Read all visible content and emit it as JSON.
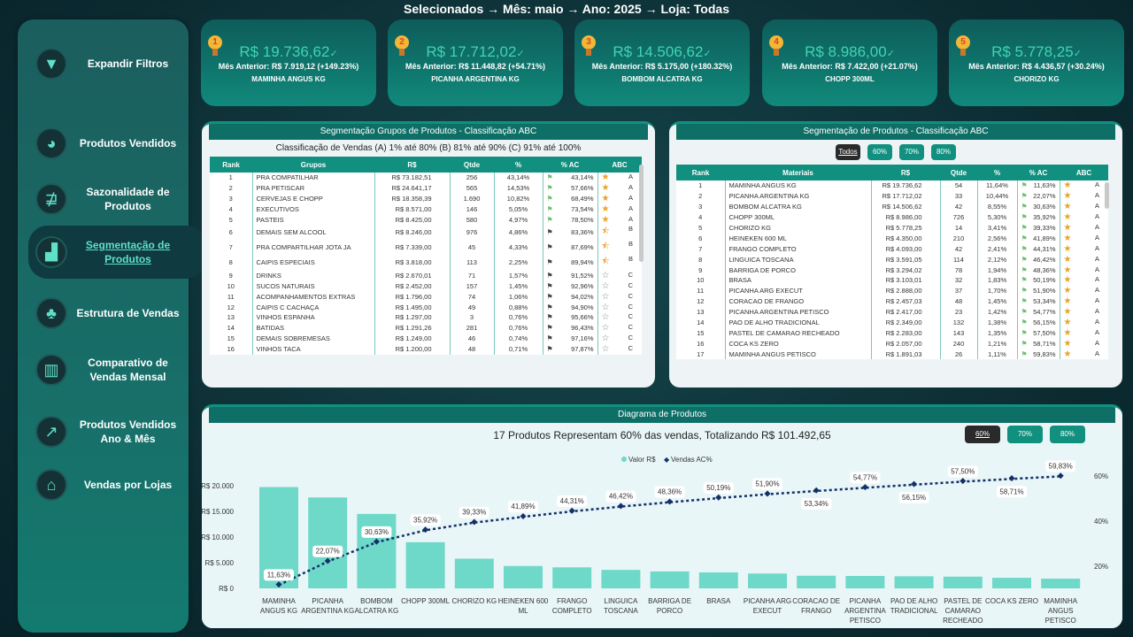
{
  "header": {
    "title": "Selecionados → Mês: maio → Ano: 2025 → Loja: Todas"
  },
  "sidebar": {
    "items": [
      {
        "label": "Expandir Filtros",
        "icon": "funnel-icon"
      },
      {
        "label": "Produtos Vendidos",
        "icon": "pie-chart-icon"
      },
      {
        "label": "Sazonalidade de Produtos",
        "icon": "seasonality-icon"
      },
      {
        "label": "Segmentação de Produtos",
        "icon": "bar-chart-growth-icon",
        "active": true
      },
      {
        "label": "Estrutura de Vendas",
        "icon": "org-chart-icon"
      },
      {
        "label": "Comparativo de Vendas Mensal",
        "icon": "compare-chart-icon"
      },
      {
        "label": "Produtos Vendidos Ano & Mês",
        "icon": "line-chart-icon"
      },
      {
        "label": "Vendas por Lojas",
        "icon": "store-icon"
      }
    ]
  },
  "cards": [
    {
      "rank": "1",
      "value": "R$ 19.736,62",
      "prev": "Mês Anterior: R$ 7.919,12 (+149.23%)",
      "name": "MAMINHA ANGUS KG"
    },
    {
      "rank": "2",
      "value": "R$ 17.712,02",
      "prev": "Mês Anterior: R$ 11.448,82 (+54.71%)",
      "name": "PICANHA ARGENTINA KG"
    },
    {
      "rank": "3",
      "value": "R$ 14.506,62",
      "prev": "Mês Anterior: R$ 5.175,00 (+180.32%)",
      "name": "BOMBOM ALCATRA KG"
    },
    {
      "rank": "4",
      "value": "R$ 8.986,00",
      "prev": "Mês Anterior: R$ 7.422,00 (+21.07%)",
      "name": "CHOPP 300ML"
    },
    {
      "rank": "5",
      "value": "R$ 5.778,25",
      "prev": "Mês Anterior: R$ 4.436,57 (+30.24%)",
      "name": "CHORIZO KG"
    }
  ],
  "groups_panel": {
    "title": "Segmentação Grupos de Produtos - Classificação ABC",
    "subtitle": "Classificação de Vendas (A) 1% até 80% (B) 81% até 90% (C) 91% até 100%",
    "columns": [
      "Rank",
      "Grupos",
      "R$",
      "Qtde",
      "%",
      "% AC",
      "ABC"
    ],
    "rows": [
      [
        "1",
        "PRA COMPATILHAR",
        "R$ 73.182,51",
        "256",
        "43,14%",
        "43,14%",
        "A"
      ],
      [
        "2",
        "PRA PETISCAR",
        "R$ 24.641,17",
        "565",
        "14,53%",
        "57,66%",
        "A"
      ],
      [
        "3",
        "CERVEJAS E CHOPP",
        "R$ 18.358,39",
        "1.690",
        "10,82%",
        "68,49%",
        "A"
      ],
      [
        "4",
        "EXECUTIVOS",
        "R$ 8.571,00",
        "146",
        "5,05%",
        "73,54%",
        "A"
      ],
      [
        "5",
        "PASTEIS",
        "R$ 8.425,00",
        "580",
        "4,97%",
        "78,50%",
        "A"
      ],
      [
        "6",
        "DEMAIS SEM ALCOOL",
        "R$ 8.246,00",
        "976",
        "4,86%",
        "83,36%",
        "B"
      ],
      [
        "7",
        "PRA COMPARTILHAR JOTA JA",
        "R$ 7.339,00",
        "45",
        "4,33%",
        "87,69%",
        "B"
      ],
      [
        "8",
        "CAIPIS ESPECIAIS",
        "R$ 3.818,00",
        "113",
        "2,25%",
        "89,94%",
        "B"
      ],
      [
        "9",
        "DRINKS",
        "R$ 2.670,01",
        "71",
        "1,57%",
        "91,52%",
        "C"
      ],
      [
        "10",
        "SUCOS NATURAIS",
        "R$ 2.452,00",
        "157",
        "1,45%",
        "92,96%",
        "C"
      ],
      [
        "11",
        "ACOMPANHAMENTOS EXTRAS",
        "R$ 1.796,00",
        "74",
        "1,06%",
        "94,02%",
        "C"
      ],
      [
        "12",
        "CAIPIS C CACHAÇA",
        "R$ 1.495,00",
        "49",
        "0,88%",
        "94,90%",
        "C"
      ],
      [
        "13",
        "VINHOS ESPANHA",
        "R$ 1.297,00",
        "3",
        "0,76%",
        "95,66%",
        "C"
      ],
      [
        "14",
        "BATIDAS",
        "R$ 1.291,26",
        "281",
        "0,76%",
        "96,43%",
        "C"
      ],
      [
        "15",
        "DEMAIS SOBREMESAS",
        "R$ 1.249,00",
        "46",
        "0,74%",
        "97,16%",
        "C"
      ],
      [
        "16",
        "VINHOS TACA",
        "R$ 1.200,00",
        "48",
        "0,71%",
        "97,87%",
        "C"
      ]
    ]
  },
  "products_panel": {
    "title": "Segmentação de Produtos - Classificação ABC",
    "filters": [
      "Todos",
      "60%",
      "70%",
      "80%"
    ],
    "active_filter": "Todos",
    "columns": [
      "Rank",
      "Materiais",
      "R$",
      "Qtde",
      "%",
      "% AC",
      "ABC"
    ],
    "rows": [
      [
        "1",
        "MAMINHA ANGUS KG",
        "R$ 19.736,62",
        "54",
        "11,64%",
        "11,63%",
        "A"
      ],
      [
        "2",
        "PICANHA ARGENTINA KG",
        "R$ 17.712,02",
        "33",
        "10,44%",
        "22,07%",
        "A"
      ],
      [
        "3",
        "BOMBOM ALCATRA KG",
        "R$ 14.506,62",
        "42",
        "8,55%",
        "30,63%",
        "A"
      ],
      [
        "4",
        "CHOPP 300ML",
        "R$ 8.986,00",
        "726",
        "5,30%",
        "35,92%",
        "A"
      ],
      [
        "5",
        "CHORIZO KG",
        "R$ 5.778,25",
        "14",
        "3,41%",
        "39,33%",
        "A"
      ],
      [
        "6",
        "HEINEKEN 600 ML",
        "R$ 4.350,00",
        "210",
        "2,56%",
        "41,89%",
        "A"
      ],
      [
        "7",
        "FRANGO COMPLETO",
        "R$ 4.093,00",
        "42",
        "2,41%",
        "44,31%",
        "A"
      ],
      [
        "8",
        "LINGUICA TOSCANA",
        "R$ 3.591,05",
        "114",
        "2,12%",
        "46,42%",
        "A"
      ],
      [
        "9",
        "BARRIGA DE PORCO",
        "R$ 3.294,02",
        "78",
        "1,94%",
        "48,36%",
        "A"
      ],
      [
        "10",
        "BRASA",
        "R$ 3.103,01",
        "32",
        "1,83%",
        "50,19%",
        "A"
      ],
      [
        "11",
        "PICANHA ARG EXECUT",
        "R$ 2.888,00",
        "37",
        "1,70%",
        "51,90%",
        "A"
      ],
      [
        "12",
        "CORACAO DE FRANGO",
        "R$ 2.457,03",
        "48",
        "1,45%",
        "53,34%",
        "A"
      ],
      [
        "13",
        "PICANHA ARGENTINA PETISCO",
        "R$ 2.417,00",
        "23",
        "1,42%",
        "54,77%",
        "A"
      ],
      [
        "14",
        "PAO DE ALHO TRADICIONAL",
        "R$ 2.349,00",
        "132",
        "1,38%",
        "56,15%",
        "A"
      ],
      [
        "15",
        "PASTEL DE CAMARAO RECHEADO",
        "R$ 2.283,00",
        "143",
        "1,35%",
        "57,50%",
        "A"
      ],
      [
        "16",
        "COCA KS ZERO",
        "R$ 2.057,00",
        "240",
        "1,21%",
        "58,71%",
        "A"
      ],
      [
        "17",
        "MAMINHA ANGUS PETISCO",
        "R$ 1.891,03",
        "26",
        "1,11%",
        "59,83%",
        "A"
      ]
    ]
  },
  "diagram": {
    "title": "Diagrama de Produtos",
    "headline": "17 Produtos Representam 60% das vendas, Totalizando R$ 101.492,65",
    "filters": [
      "60%",
      "70%",
      "80%"
    ],
    "active_filter": "60%",
    "chart_data": {
      "type": "bar+line",
      "legend": [
        "Valor R$",
        "Vendas AC%"
      ],
      "legend_position": "top",
      "categories": [
        "MAMINHA ANGUS KG",
        "PICANHA ARGENTINA KG",
        "BOMBOM ALCATRA KG",
        "CHOPP 300ML",
        "CHORIZO KG",
        "HEINEKEN 600 ML",
        "FRANGO COMPLETO",
        "LINGUICA TOSCANA",
        "BARRIGA DE PORCO",
        "BRASA",
        "PICANHA ARG EXECUT",
        "CORACAO DE FRANGO",
        "PICANHA ARGENTINA PETISCO",
        "PAO DE ALHO TRADICIONAL",
        "PASTEL DE CAMARAO RECHEADO",
        "COCA KS ZERO",
        "MAMINHA ANGUS PETISCO"
      ],
      "series": [
        {
          "name": "Valor R$",
          "type": "bar",
          "color": "#6ed9c8",
          "values": [
            19736.62,
            17712.02,
            14506.62,
            8986,
            5778.25,
            4350,
            4093,
            3591.05,
            3294.02,
            3103.01,
            2888,
            2457.03,
            2417,
            2349,
            2283,
            2057,
            1891.03
          ]
        },
        {
          "name": "Vendas AC%",
          "type": "line",
          "color": "#13306a",
          "values": [
            11.63,
            22.07,
            30.63,
            35.92,
            39.33,
            41.89,
            44.31,
            46.42,
            48.36,
            50.19,
            51.9,
            53.34,
            54.77,
            56.15,
            57.5,
            58.71,
            59.83
          ],
          "labels": [
            "11,63%",
            "22,07%",
            "30,63%",
            "35,92%",
            "39,33%",
            "41,89%",
            "44,31%",
            "46,42%",
            "48,36%",
            "50,19%",
            "51,90%",
            "53,34%",
            "54,77%",
            "56,15%",
            "57,50%",
            "58,71%",
            "59,83%"
          ]
        }
      ],
      "y_left": {
        "ticks": [
          "R$ 0",
          "R$ 5.000",
          "R$ 10.000",
          "R$ 15.000",
          "R$ 20.000"
        ],
        "range": [
          0,
          20000
        ]
      },
      "y_right": {
        "ticks": [
          "20%",
          "40%",
          "60%"
        ],
        "range": [
          0,
          65
        ]
      }
    }
  }
}
